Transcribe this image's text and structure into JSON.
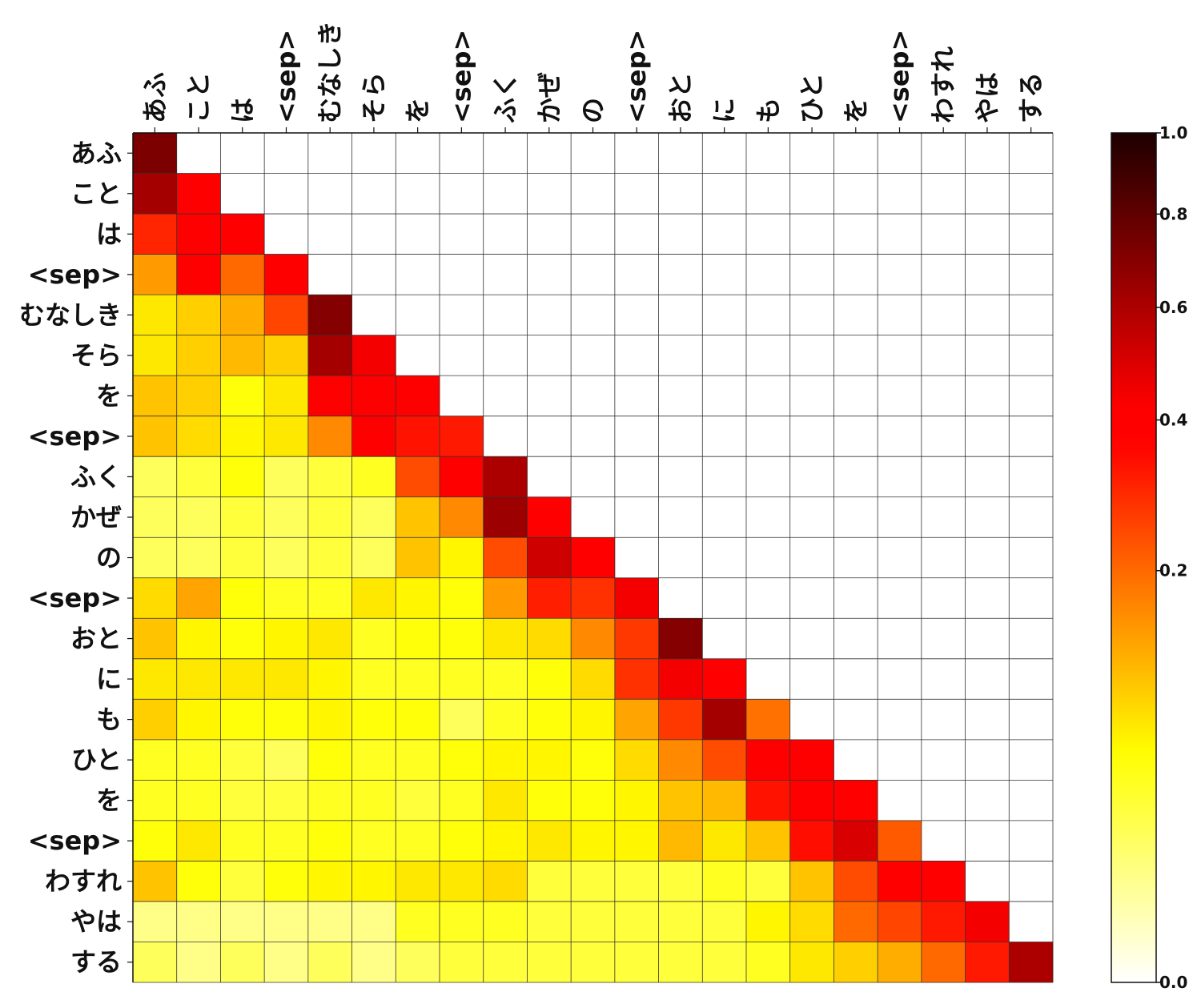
{
  "chart_data": {
    "type": "heatmap",
    "title": "",
    "xlabel": "",
    "ylabel": "",
    "x_labels": [
      "あふ",
      "こと",
      "は",
      "<sep>",
      "むなしき",
      "そら",
      "を",
      "<sep>",
      "ふく",
      "かぜ",
      "の",
      "<sep>",
      "おと",
      "に",
      "も",
      "ひと",
      "を",
      "<sep>",
      "わすれ",
      "やは",
      "する"
    ],
    "y_labels": [
      "あふ",
      "こと",
      "は",
      "<sep>",
      "むなしき",
      "そら",
      "を",
      "<sep>",
      "ふく",
      "かぜ",
      "の",
      "<sep>",
      "おと",
      "に",
      "も",
      "ひと",
      "を",
      "<sep>",
      "わすれ",
      "やは",
      "する"
    ],
    "colormap": "hot_r",
    "mask": "upper-triangle",
    "value_range": [
      0.0,
      1.0
    ],
    "colorbar": {
      "ticks": [
        0.0,
        0.2,
        0.4,
        0.6,
        0.8,
        1.0
      ],
      "tick_labels": [
        "0.0",
        "0.2",
        "0.4",
        "0.6",
        "0.8",
        "1.0"
      ],
      "scale": "power",
      "placement": "right"
    },
    "values": [
      [
        0.72
      ],
      [
        0.62,
        0.38
      ],
      [
        0.3,
        0.42,
        0.42
      ],
      [
        0.14,
        0.4,
        0.2,
        0.4
      ],
      [
        0.07,
        0.09,
        0.12,
        0.25,
        0.7
      ],
      [
        0.07,
        0.09,
        0.11,
        0.09,
        0.62,
        0.44
      ],
      [
        0.1,
        0.09,
        0.05,
        0.07,
        0.38,
        0.38,
        0.38
      ],
      [
        0.1,
        0.08,
        0.06,
        0.07,
        0.16,
        0.37,
        0.33,
        0.32
      ],
      [
        0.02,
        0.03,
        0.05,
        0.02,
        0.03,
        0.04,
        0.24,
        0.37,
        0.6
      ],
      [
        0.02,
        0.02,
        0.03,
        0.02,
        0.03,
        0.02,
        0.1,
        0.16,
        0.64,
        0.42
      ],
      [
        0.02,
        0.02,
        0.03,
        0.02,
        0.03,
        0.02,
        0.1,
        0.06,
        0.24,
        0.52,
        0.4
      ],
      [
        0.08,
        0.13,
        0.05,
        0.04,
        0.04,
        0.07,
        0.06,
        0.05,
        0.14,
        0.31,
        0.28,
        0.44
      ],
      [
        0.1,
        0.06,
        0.05,
        0.06,
        0.07,
        0.04,
        0.05,
        0.05,
        0.07,
        0.08,
        0.16,
        0.27,
        0.7
      ],
      [
        0.07,
        0.07,
        0.07,
        0.07,
        0.06,
        0.04,
        0.04,
        0.04,
        0.04,
        0.05,
        0.08,
        0.28,
        0.44,
        0.4
      ],
      [
        0.09,
        0.06,
        0.05,
        0.05,
        0.06,
        0.05,
        0.05,
        0.02,
        0.04,
        0.05,
        0.06,
        0.13,
        0.27,
        0.62,
        0.19
      ],
      [
        0.04,
        0.04,
        0.03,
        0.02,
        0.05,
        0.04,
        0.04,
        0.05,
        0.06,
        0.06,
        0.05,
        0.08,
        0.16,
        0.24,
        0.42,
        0.4
      ],
      [
        0.04,
        0.04,
        0.03,
        0.03,
        0.04,
        0.04,
        0.03,
        0.04,
        0.07,
        0.05,
        0.05,
        0.06,
        0.1,
        0.11,
        0.33,
        0.37,
        0.42
      ],
      [
        0.05,
        0.07,
        0.04,
        0.04,
        0.05,
        0.04,
        0.04,
        0.05,
        0.06,
        0.07,
        0.06,
        0.06,
        0.11,
        0.07,
        0.1,
        0.34,
        0.5,
        0.22
      ],
      [
        0.1,
        0.05,
        0.03,
        0.05,
        0.06,
        0.06,
        0.07,
        0.07,
        0.08,
        0.03,
        0.03,
        0.03,
        0.03,
        0.04,
        0.03,
        0.1,
        0.24,
        0.38,
        0.42
      ],
      [
        0.01,
        0.01,
        0.01,
        0.01,
        0.01,
        0.01,
        0.04,
        0.04,
        0.04,
        0.03,
        0.03,
        0.03,
        0.03,
        0.03,
        0.06,
        0.08,
        0.2,
        0.25,
        0.32,
        0.44
      ],
      [
        0.02,
        0.01,
        0.02,
        0.01,
        0.02,
        0.01,
        0.02,
        0.03,
        0.03,
        0.03,
        0.03,
        0.03,
        0.03,
        0.03,
        0.04,
        0.07,
        0.09,
        0.12,
        0.2,
        0.32,
        0.6
      ]
    ]
  }
}
